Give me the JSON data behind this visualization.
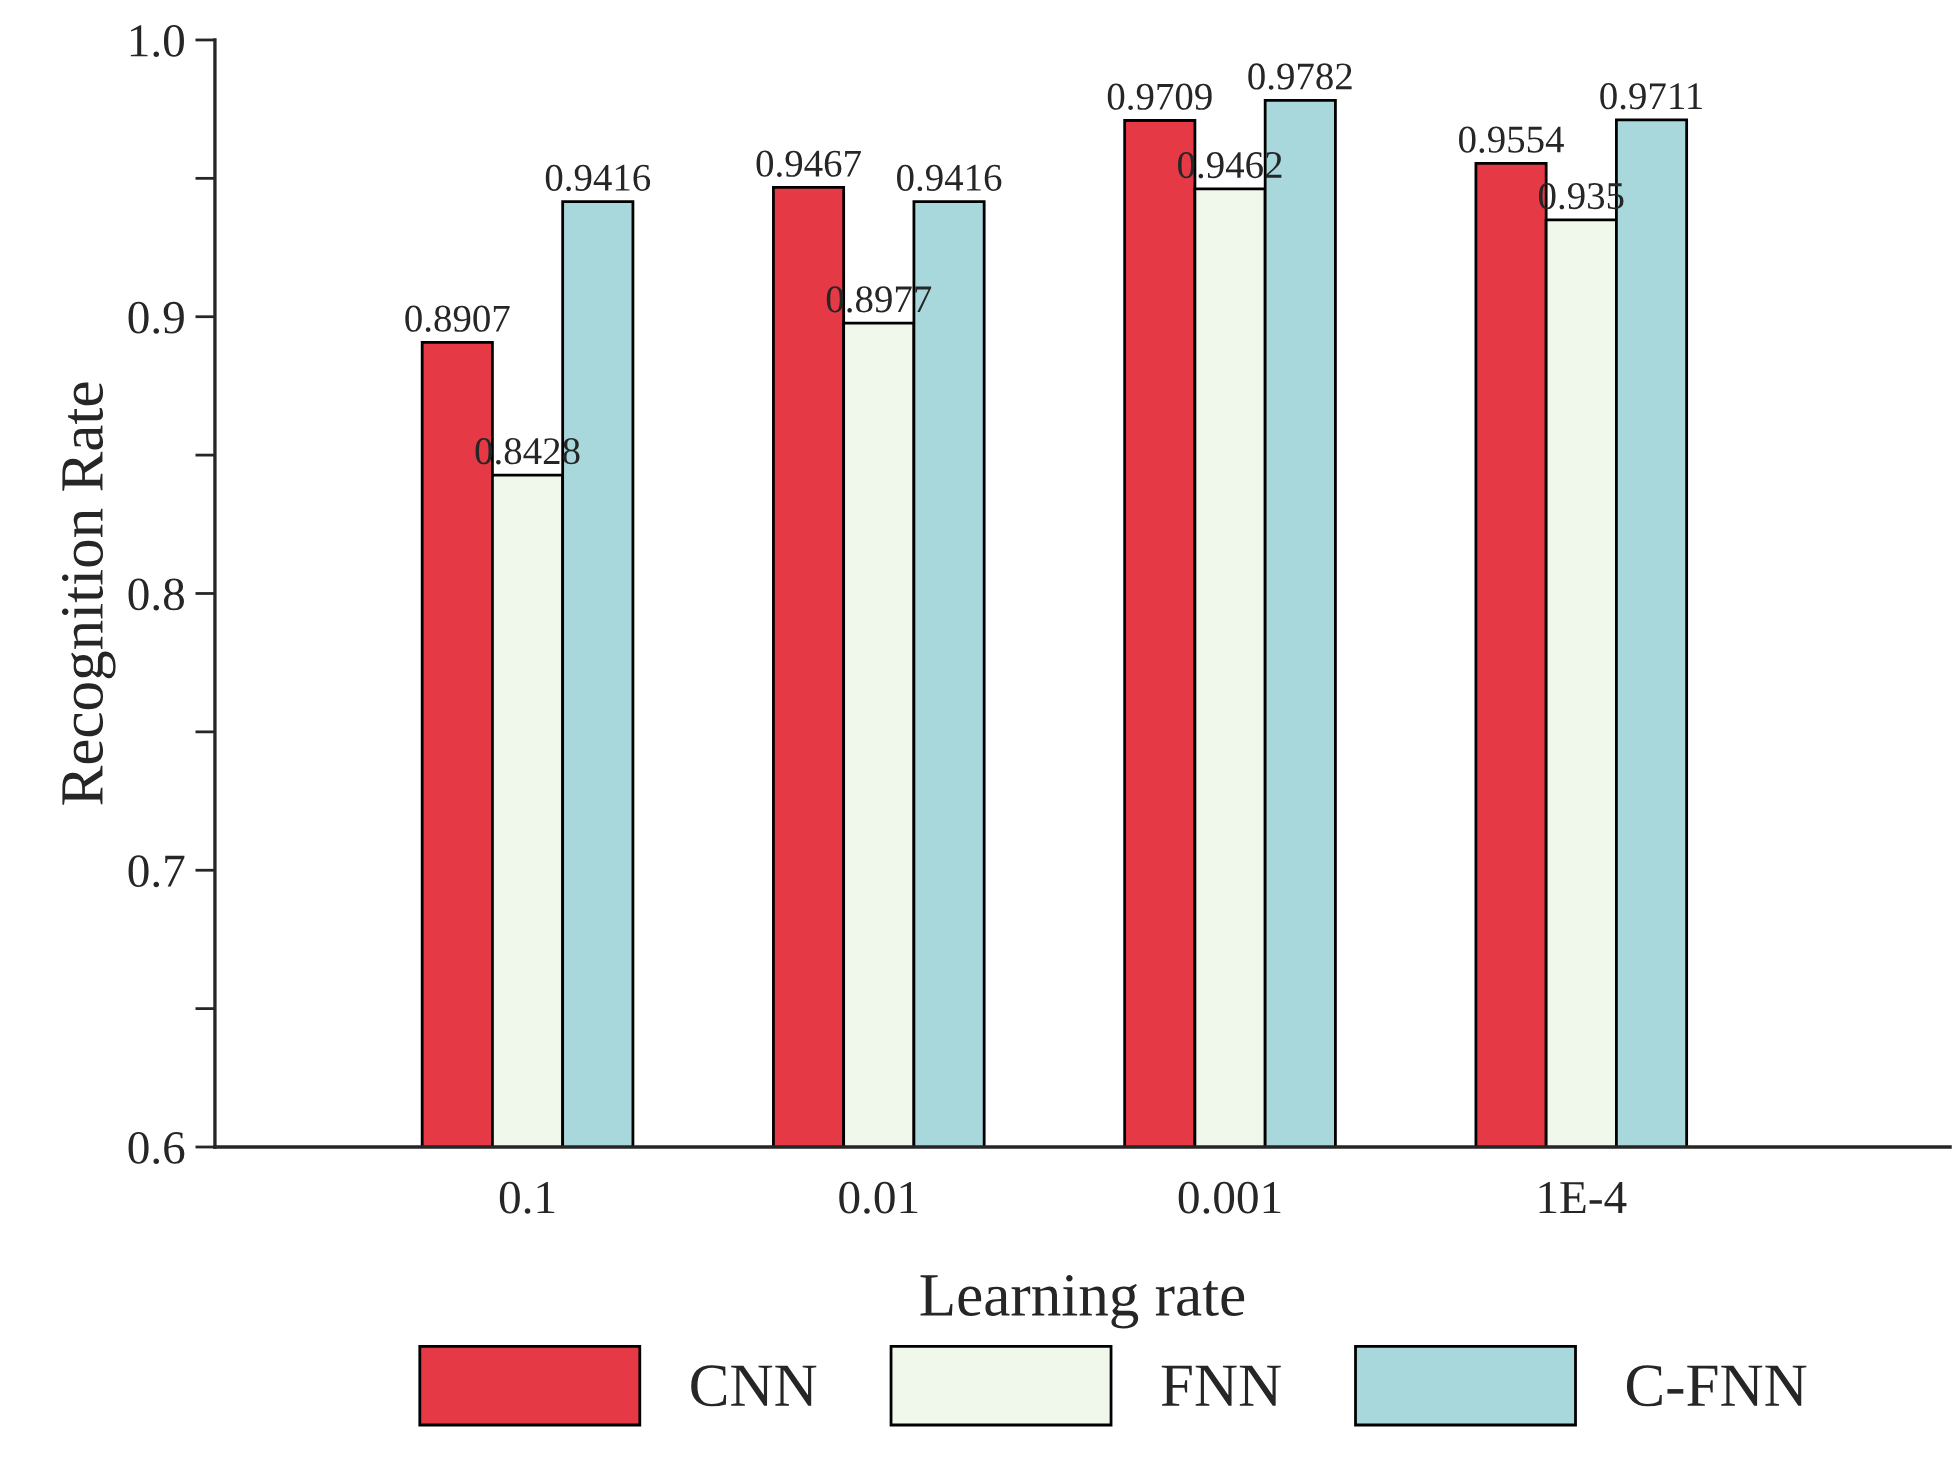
{
  "chart_data": {
    "type": "bar",
    "xlabel": "Learning rate",
    "ylabel": "Recognition Rate",
    "categories": [
      "0.1",
      "0.01",
      "0.001",
      "1E-4"
    ],
    "series": [
      {
        "name": "CNN",
        "color": "#e63946",
        "values": [
          0.8907,
          0.9467,
          0.9709,
          0.9554
        ]
      },
      {
        "name": "FNN",
        "color": "#f0f8ec",
        "values": [
          0.8428,
          0.8977,
          0.9462,
          0.935
        ]
      },
      {
        "name": "C-FNN",
        "color": "#a8d8dc",
        "values": [
          0.9416,
          0.9416,
          0.9782,
          0.9711
        ]
      }
    ],
    "ylim": [
      0.6,
      1.0
    ],
    "yticks": [
      0.6,
      {
        "value": 0.65,
        "label": null
      },
      0.7,
      {
        "value": 0.75,
        "label": null
      },
      0.8,
      {
        "value": 0.85,
        "label": null
      },
      0.9,
      {
        "value": 0.95,
        "label": null
      },
      {
        "value": 1.0,
        "label": "1.0"
      }
    ],
    "data_labels": true,
    "legend": "bottom",
    "grid": false
  }
}
